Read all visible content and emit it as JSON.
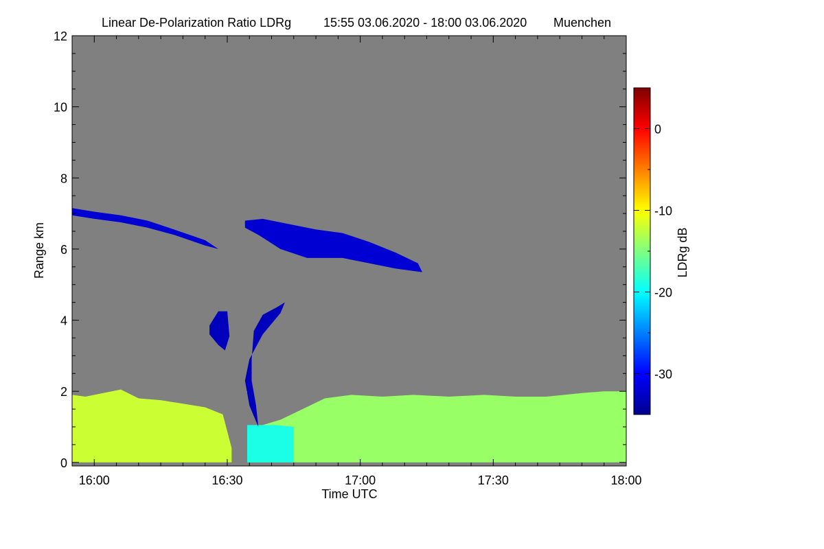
{
  "chart_data": {
    "type": "heatmap",
    "title": "Linear De-Polarization Ratio LDRg",
    "time_range": "15:55 03.06.2020 - 18:00 03.06.2020",
    "location": "Muenchen",
    "xlabel": "Time UTC",
    "ylabel": "Range km",
    "x_start_min": 955,
    "x_end_min": 1080,
    "xlim_min": [
      955,
      1080
    ],
    "x_ticks": [
      {
        "value": 960,
        "label": "16:00"
      },
      {
        "value": 990,
        "label": "16:30"
      },
      {
        "value": 1020,
        "label": "17:00"
      },
      {
        "value": 1050,
        "label": "17:30"
      },
      {
        "value": 1080,
        "label": "18:00"
      }
    ],
    "ylim_km": [
      -0.1,
      12
    ],
    "y_ticks": [
      {
        "value": 0,
        "label": "0"
      },
      {
        "value": 2,
        "label": "2"
      },
      {
        "value": 4,
        "label": "4"
      },
      {
        "value": 6,
        "label": "6"
      },
      {
        "value": 8,
        "label": "8"
      },
      {
        "value": 10,
        "label": "10"
      },
      {
        "value": 12,
        "label": "12"
      }
    ],
    "colorbar": {
      "label": "LDRg dB",
      "range": [
        -35,
        5
      ],
      "ticks": [
        {
          "value": 0,
          "label": "0"
        },
        {
          "value": -10,
          "label": "-10"
        },
        {
          "value": -20,
          "label": "-20"
        },
        {
          "value": -30,
          "label": "-30"
        }
      ]
    },
    "no_signal_color": "#808080",
    "regions": [
      {
        "name": "boundary-layer",
        "ldr_db": -12,
        "points": [
          [
            955,
            1.9
          ],
          [
            958,
            1.85
          ],
          [
            962,
            1.95
          ],
          [
            966,
            2.05
          ],
          [
            970,
            1.8
          ],
          [
            975,
            1.75
          ],
          [
            980,
            1.65
          ],
          [
            985,
            1.55
          ],
          [
            989,
            1.35
          ],
          [
            991,
            0.4
          ],
          [
            991,
            0
          ],
          [
            955,
            0
          ]
        ]
      },
      {
        "name": "boundary-layer-2",
        "ldr_db": -14,
        "points": [
          [
            994.5,
            0.9
          ],
          [
            998,
            1.05
          ],
          [
            1002,
            1.2
          ],
          [
            1007,
            1.5
          ],
          [
            1012,
            1.8
          ],
          [
            1018,
            1.9
          ],
          [
            1025,
            1.85
          ],
          [
            1032,
            1.9
          ],
          [
            1040,
            1.85
          ],
          [
            1048,
            1.9
          ],
          [
            1055,
            1.85
          ],
          [
            1062,
            1.85
          ],
          [
            1070,
            1.95
          ],
          [
            1075,
            2.0
          ],
          [
            1080,
            2.0
          ],
          [
            1080,
            0
          ],
          [
            994.5,
            0
          ]
        ]
      },
      {
        "name": "melting-layer-patch",
        "ldr_db": -19,
        "points": [
          [
            994.5,
            0
          ],
          [
            994.5,
            1.05
          ],
          [
            1001,
            1.05
          ],
          [
            1005,
            1.0
          ],
          [
            1005,
            0
          ]
        ]
      },
      {
        "name": "cirrus-layer-left",
        "ldr_db": -32,
        "points": [
          [
            955,
            7.15
          ],
          [
            960,
            7.05
          ],
          [
            966,
            6.95
          ],
          [
            972,
            6.8
          ],
          [
            978,
            6.55
          ],
          [
            985,
            6.25
          ],
          [
            988,
            6.0
          ],
          [
            985,
            6.1
          ],
          [
            978,
            6.4
          ],
          [
            972,
            6.6
          ],
          [
            966,
            6.75
          ],
          [
            960,
            6.85
          ],
          [
            955,
            6.95
          ]
        ]
      },
      {
        "name": "cirrus-layer-right",
        "ldr_db": -32,
        "points": [
          [
            994,
            6.8
          ],
          [
            998,
            6.85
          ],
          [
            1004,
            6.7
          ],
          [
            1010,
            6.55
          ],
          [
            1016,
            6.45
          ],
          [
            1022,
            6.2
          ],
          [
            1028,
            5.9
          ],
          [
            1033,
            5.6
          ],
          [
            1034,
            5.35
          ],
          [
            1028,
            5.45
          ],
          [
            1022,
            5.6
          ],
          [
            1016,
            5.75
          ],
          [
            1008,
            5.75
          ],
          [
            1002,
            6.0
          ],
          [
            997,
            6.4
          ],
          [
            994,
            6.6
          ]
        ]
      },
      {
        "name": "convective-cell-left",
        "ldr_db": -33,
        "points": [
          [
            986,
            3.85
          ],
          [
            988,
            4.25
          ],
          [
            990,
            4.25
          ],
          [
            990.5,
            3.55
          ],
          [
            989.5,
            3.15
          ],
          [
            988,
            3.3
          ],
          [
            986,
            3.6
          ]
        ]
      },
      {
        "name": "convective-cell-right",
        "ldr_db": -33,
        "points": [
          [
            996,
            3.7
          ],
          [
            998,
            4.15
          ],
          [
            1001,
            4.35
          ],
          [
            1003,
            4.5
          ],
          [
            1002,
            4.2
          ],
          [
            998,
            3.6
          ],
          [
            995,
            2.9
          ],
          [
            994,
            2.3
          ],
          [
            995,
            1.6
          ],
          [
            997,
            1.0
          ],
          [
            996.5,
            1.6
          ],
          [
            995.5,
            2.3
          ],
          [
            995.5,
            2.9
          ]
        ]
      }
    ],
    "data_gap": {
      "start_min": 991,
      "end_min": 994.5
    }
  }
}
